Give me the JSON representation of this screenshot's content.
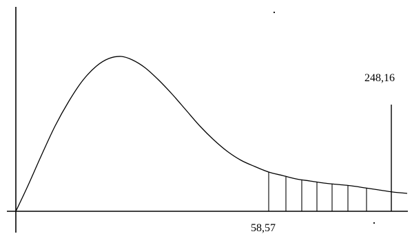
{
  "chart_data": {
    "type": "area",
    "title": "",
    "xlabel": "",
    "ylabel": "",
    "grid": false,
    "legend": "none",
    "line_color": "#000000",
    "background_color": "#ffffff",
    "annotations": [
      {
        "id": "shade-start",
        "text": "58,57",
        "x": 58.57
      },
      {
        "id": "upper-marker",
        "text": "248,16",
        "x": 248.16
      }
    ],
    "shaded_region": {
      "from": 58.57,
      "to": 248.16
    }
  }
}
